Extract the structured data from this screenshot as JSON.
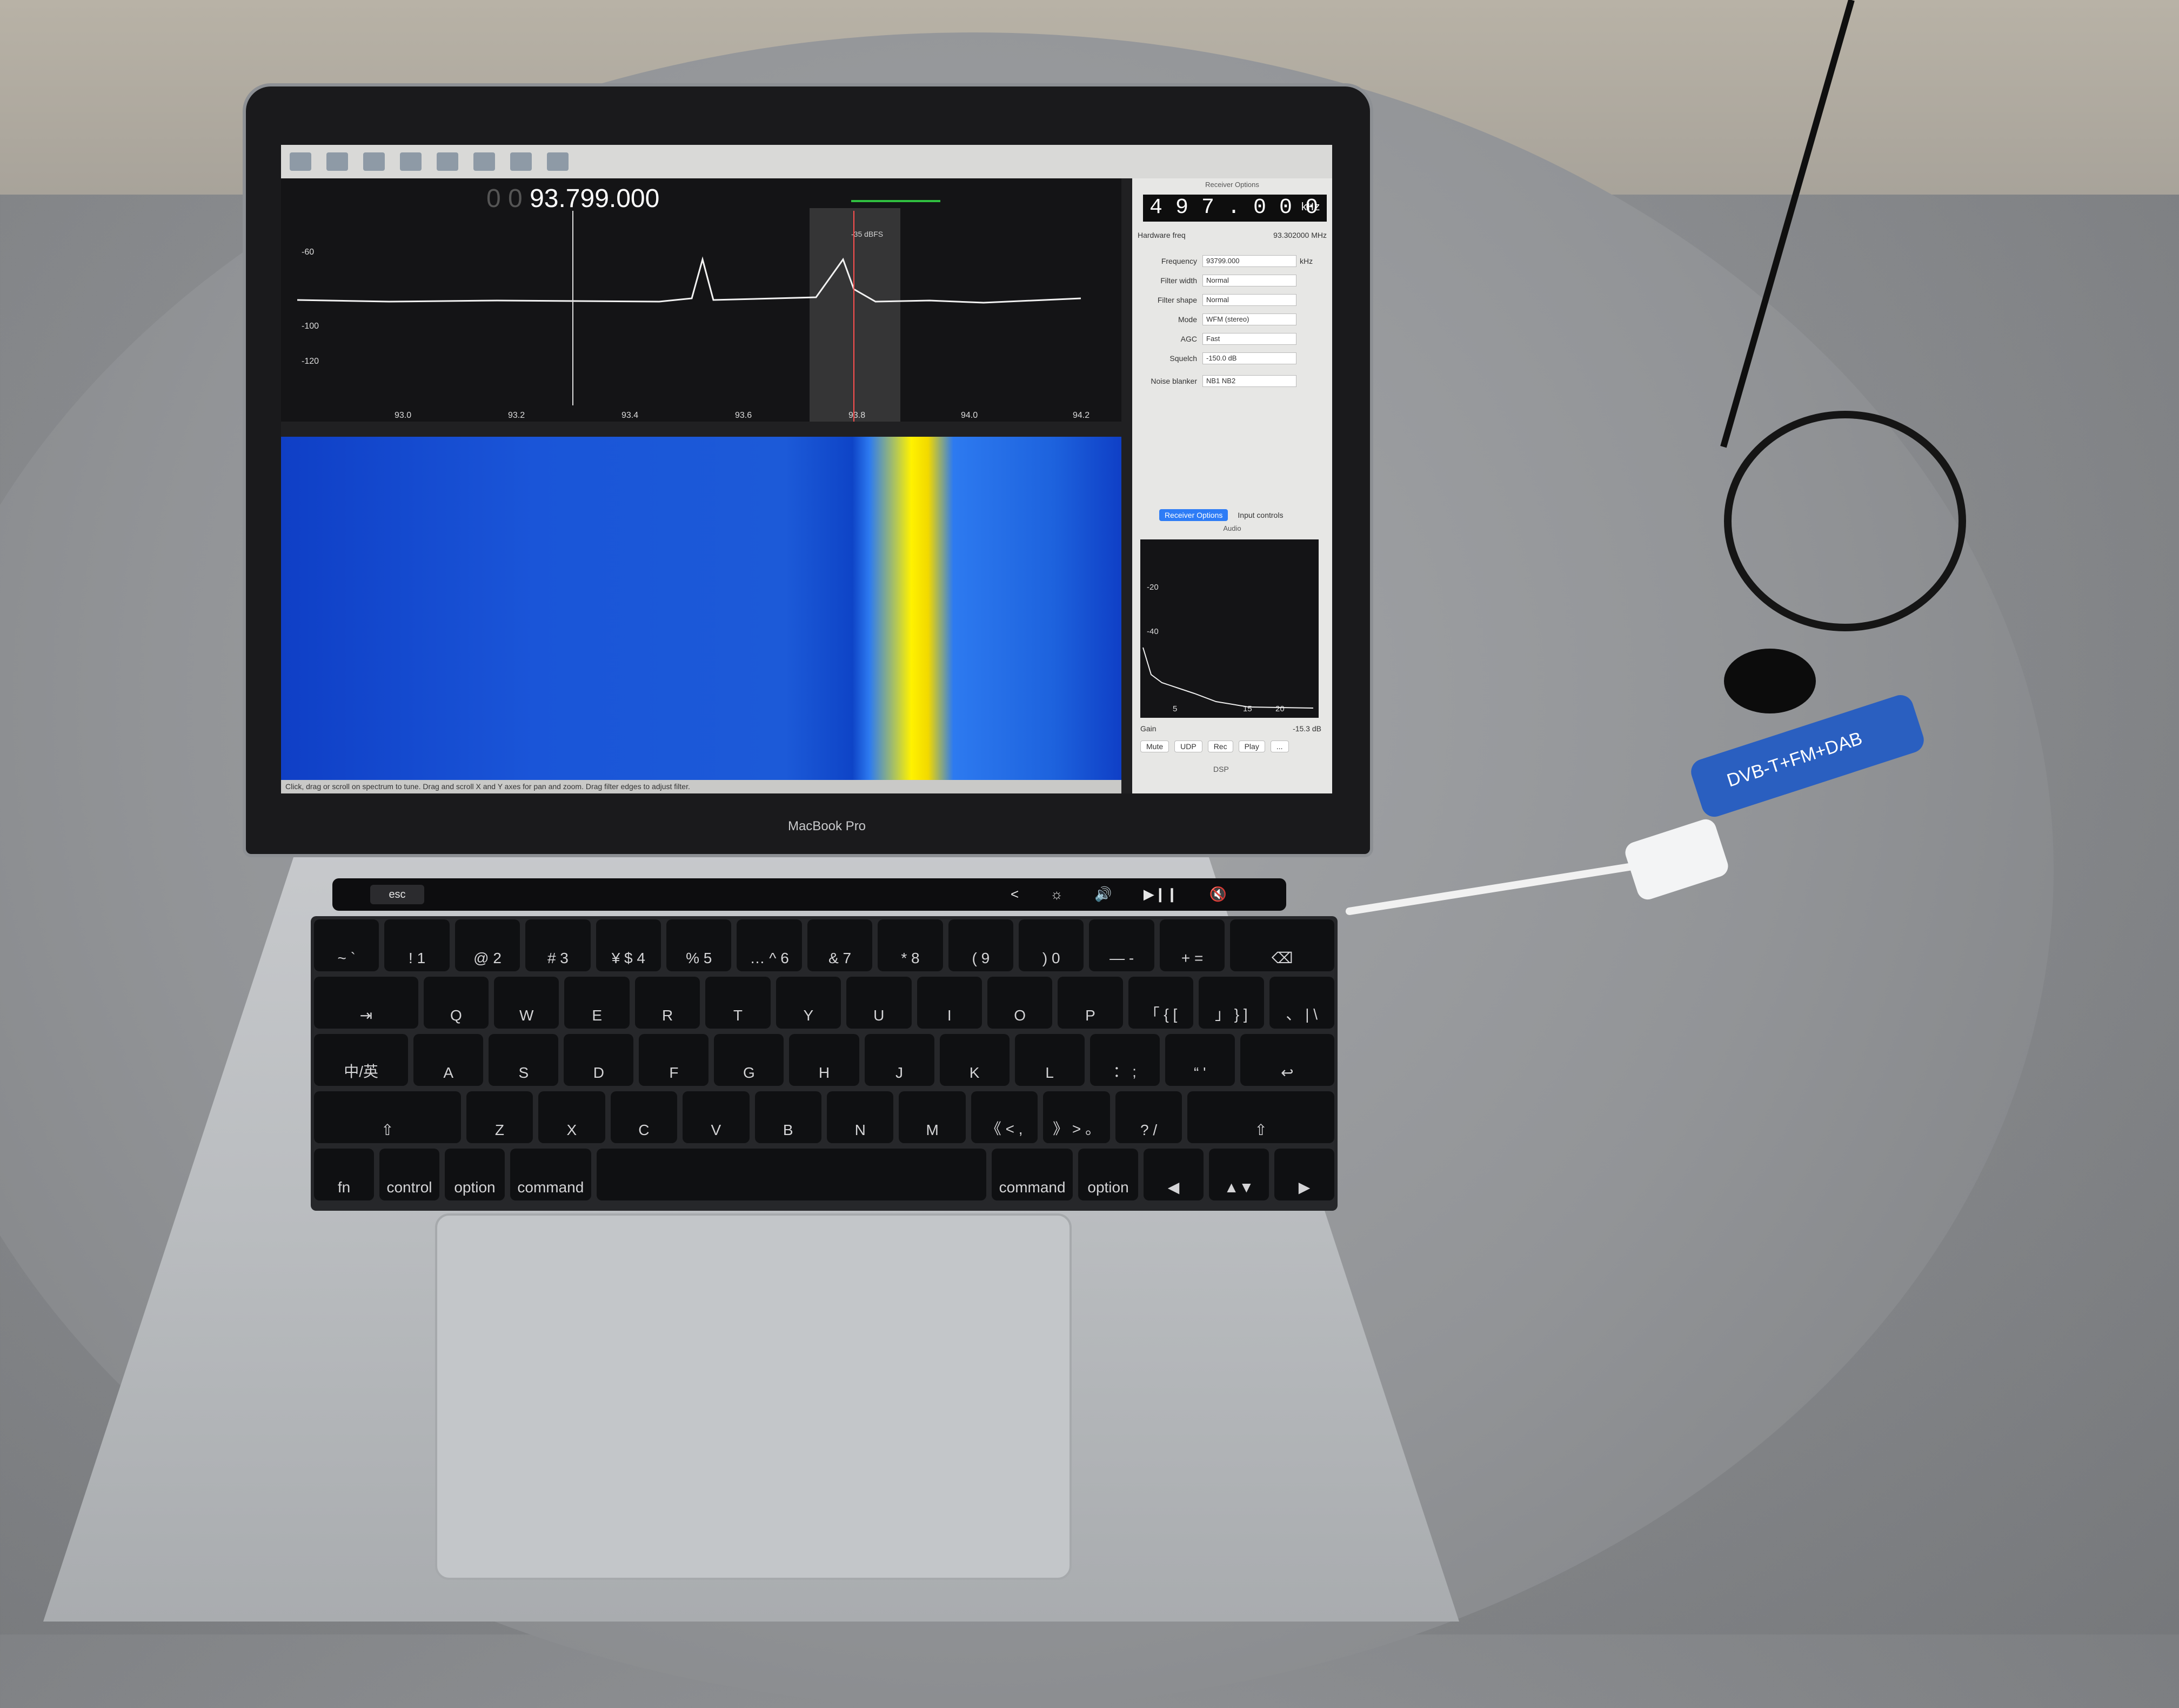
{
  "laptop": {
    "brand": "MacBook Pro"
  },
  "touchbar": {
    "esc": "esc",
    "controls": [
      "<",
      "☼",
      "🔊",
      "▶︎❙❙",
      "🔇"
    ]
  },
  "keyboard": {
    "rows": [
      [
        "~ `",
        "! 1",
        "@ 2",
        "# 3",
        "¥ $ 4",
        "% 5",
        "… ^ 6",
        "& 7",
        "* 8",
        "( 9",
        ") 0",
        "— -",
        "+ =",
        "⌫"
      ],
      [
        "⇥",
        "Q",
        "W",
        "E",
        "R",
        "T",
        "Y",
        "U",
        "I",
        "O",
        "P",
        "「 { [",
        "」 } ]",
        "、 | \\"
      ],
      [
        "中/英",
        "A",
        "S",
        "D",
        "F",
        "G",
        "H",
        "J",
        "K",
        "L",
        "： ;",
        "“ '",
        "↩"
      ],
      [
        "⇧",
        "Z",
        "X",
        "C",
        "V",
        "B",
        "N",
        "M",
        "《 < ,",
        "》 > 。",
        "? /",
        "⇧"
      ],
      [
        "fn",
        "control",
        "option",
        "command",
        "",
        "command",
        "option",
        "◀",
        "▲▼",
        "▶"
      ]
    ]
  },
  "gqrx": {
    "frequency_display": "93.799.000",
    "frequency_dim_prefix": "0 0",
    "dbfs": "-35 dBFS",
    "y_ticks": [
      "-60",
      "-100",
      "-120"
    ],
    "x_ticks": [
      "93.0",
      "93.2",
      "93.4",
      "93.6",
      "93.8",
      "94.0",
      "94.2"
    ],
    "status": "Click, drag or scroll on spectrum to tune. Drag and scroll X and Y axes for pan and zoom. Drag filter edges to adjust filter.",
    "receiver_options": {
      "title": "Receiver Options",
      "lcd": "4 9 7 . 0 0 0",
      "lcd_unit": "kHz",
      "hardware_freq_label": "Hardware freq",
      "hardware_freq_value": "93.302000 MHz",
      "rows": [
        {
          "label": "Frequency",
          "value": "93799.000",
          "unit": "kHz"
        },
        {
          "label": "Filter width",
          "value": "Normal"
        },
        {
          "label": "Filter shape",
          "value": "Normal"
        },
        {
          "label": "Mode",
          "value": "WFM (stereo)"
        },
        {
          "label": "AGC",
          "value": "Fast"
        },
        {
          "label": "Squelch",
          "value": "-150.0 dB"
        },
        {
          "label": "Noise blanker",
          "value": "NB1   NB2"
        }
      ],
      "tabs": [
        "Receiver Options",
        "Input controls"
      ]
    },
    "audio": {
      "title": "Audio",
      "y_ticks": [
        "-20",
        "-40"
      ],
      "x_ticks": [
        "5",
        "15",
        "20"
      ],
      "gain_label": "Gain",
      "gain_value": "-15.3 dB",
      "buttons": [
        "Mute",
        "UDP",
        "Rec",
        "Play",
        "..."
      ],
      "dsp": "DSP"
    }
  },
  "dongle": {
    "label": "DVB-T+FM+DAB"
  }
}
